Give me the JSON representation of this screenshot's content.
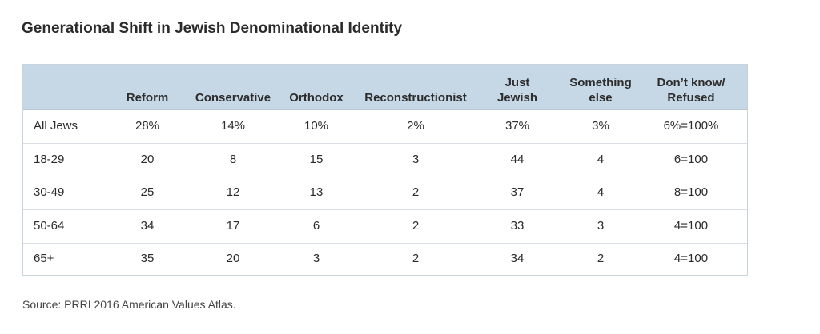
{
  "title": "Generational Shift in Jewish Denominational Identity",
  "source": "Source: PRRI 2016 American Values Atlas.",
  "chart_data": {
    "type": "table",
    "title": "Generational Shift in Jewish Denominational Identity",
    "columns": [
      "Reform",
      "Conservative",
      "Orthodox",
      "Reconstructionist",
      "Just Jewish",
      "Something else",
      "Don’t know/ Refused"
    ],
    "rows": [
      {
        "label": "All Jews",
        "values": [
          "28%",
          "14%",
          "10%",
          "2%",
          "37%",
          "3%",
          "6%=100%"
        ]
      },
      {
        "label": "18-29",
        "values": [
          "20",
          "8",
          "15",
          "3",
          "44",
          "4",
          "6=100"
        ]
      },
      {
        "label": "30-49",
        "values": [
          "25",
          "12",
          "13",
          "2",
          "37",
          "4",
          "8=100"
        ]
      },
      {
        "label": "50-64",
        "values": [
          "34",
          "17",
          "6",
          "2",
          "33",
          "3",
          "4=100"
        ]
      },
      {
        "label": "65+",
        "values": [
          "35",
          "20",
          "3",
          "2",
          "34",
          "2",
          "4=100"
        ]
      }
    ]
  }
}
